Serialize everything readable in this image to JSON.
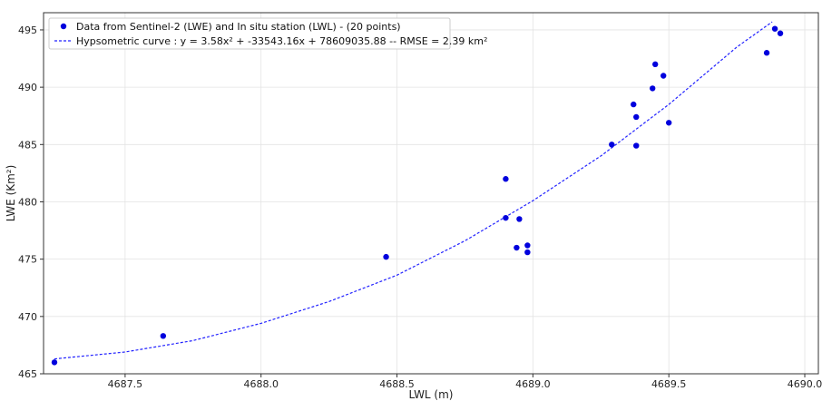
{
  "chart_data": {
    "type": "scatter",
    "xlabel": "LWL (m)",
    "ylabel": "LWE (Km²)",
    "xlim": [
      4687.2,
      4690.05
    ],
    "ylim": [
      465.0,
      496.5
    ],
    "xticks": [
      4687.5,
      4688.0,
      4688.5,
      4689.0,
      4689.5,
      4690.0
    ],
    "xtick_labels": [
      "4687.5",
      "4688.0",
      "4688.5",
      "4689.0",
      "4689.5",
      "4690.0"
    ],
    "yticks": [
      465,
      470,
      475,
      480,
      485,
      490,
      495
    ],
    "ytick_labels": [
      "465",
      "470",
      "475",
      "480",
      "485",
      "490",
      "495"
    ],
    "grid": true,
    "legend_position": "top-left",
    "series": [
      {
        "name": "Data from Sentinel-2 (LWE) and In situ station (LWL) - (20 points)",
        "kind": "scatter",
        "color": "#0000dd",
        "x": [
          4687.24,
          4687.64,
          4688.46,
          4688.9,
          4688.9,
          4688.94,
          4688.95,
          4688.98,
          4688.98,
          4689.29,
          4689.37,
          4689.38,
          4689.38,
          4689.44,
          4689.45,
          4689.48,
          4689.5,
          4689.86,
          4689.89,
          4689.91
        ],
        "y": [
          466.0,
          468.3,
          475.2,
          482.0,
          478.6,
          476.0,
          478.5,
          476.2,
          475.6,
          485.0,
          488.5,
          487.4,
          484.9,
          489.9,
          492.0,
          491.0,
          486.9,
          493.0,
          495.1,
          494.7
        ]
      },
      {
        "name": "Hypsometric curve : y = 3.58x² + -33543.16x + 78609035.88 -- RMSE = 2.39 km²",
        "kind": "line",
        "style": "dashed",
        "color": "#2222ff",
        "x": [
          4687.24,
          4687.5,
          4687.75,
          4688.0,
          4688.25,
          4688.5,
          4688.75,
          4689.0,
          4689.25,
          4689.5,
          4689.75,
          4689.88
        ],
        "y": [
          466.3,
          466.9,
          467.9,
          469.4,
          471.3,
          473.6,
          476.6,
          480.1,
          484.0,
          488.5,
          493.5,
          495.7
        ]
      }
    ]
  }
}
